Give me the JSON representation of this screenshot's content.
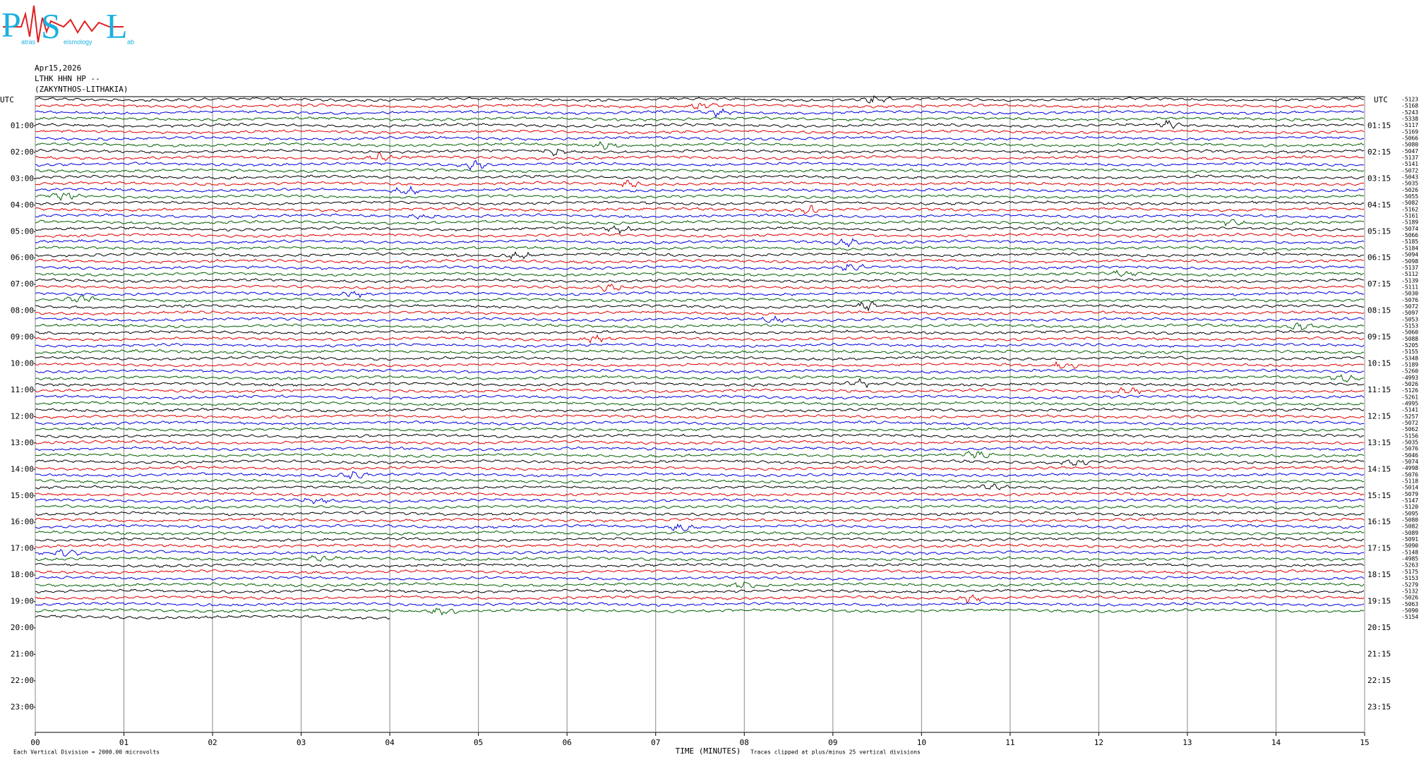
{
  "logo": {
    "letters": [
      "P",
      "S",
      "L"
    ],
    "words": [
      "atras",
      "eismology",
      "ab"
    ]
  },
  "chart_data": {
    "type": "helicorder",
    "title_lines": [
      "Apr15,2026",
      "LTHK HHN HP --",
      "(ZAKYNTHOS-LITHAKIA)"
    ],
    "left_axis_title": "UTC",
    "right_axis_title": "UTC",
    "left_hours": [
      "01:00",
      "02:00",
      "03:00",
      "04:00",
      "05:00",
      "06:00",
      "07:00",
      "08:00",
      "09:00",
      "10:00",
      "11:00",
      "12:00",
      "13:00",
      "14:00",
      "15:00",
      "16:00",
      "17:00",
      "18:00",
      "19:00",
      "20:00",
      "21:00",
      "22:00",
      "23:00"
    ],
    "right_hours": [
      "01:15",
      "02:15",
      "03:15",
      "04:15",
      "05:15",
      "06:15",
      "07:15",
      "08:15",
      "09:15",
      "10:15",
      "11:15",
      "12:15",
      "13:15",
      "14:15",
      "15:15",
      "16:15",
      "17:15",
      "18:15",
      "19:15",
      "20:15",
      "21:15",
      "22:15",
      "23:15"
    ],
    "xlabel": "TIME (MINUTES)",
    "xlim": [
      0,
      15
    ],
    "xticks": [
      {
        "value": 0,
        "label": "00"
      },
      {
        "value": 1,
        "label": "01"
      },
      {
        "value": 2,
        "label": "02"
      },
      {
        "value": 3,
        "label": "03"
      },
      {
        "value": 4,
        "label": "04"
      },
      {
        "value": 5,
        "label": "05"
      },
      {
        "value": 6,
        "label": "06"
      },
      {
        "value": 7,
        "label": "07"
      },
      {
        "value": 8,
        "label": "08"
      },
      {
        "value": 9,
        "label": "09"
      },
      {
        "value": 10,
        "label": "10"
      },
      {
        "value": 11,
        "label": "11"
      },
      {
        "value": 12,
        "label": "12"
      },
      {
        "value": 13,
        "label": "13"
      },
      {
        "value": 14,
        "label": "14"
      },
      {
        "value": 15,
        "label": "15"
      }
    ],
    "row_colors": [
      "#000000",
      "#e00000",
      "#0000e0",
      "#006000"
    ],
    "row_offsets": [
      -5123,
      -5168,
      -5243,
      -5338,
      -5117,
      -5169,
      -5066,
      -5080,
      -5047,
      -5137,
      -5141,
      -5072,
      -5043,
      -5035,
      -5026,
      -5055,
      -5082,
      -5162,
      -5161,
      -5189,
      -5074,
      -5066,
      -5185,
      -5184,
      -5094,
      -5098,
      -5137,
      -5112,
      -5139,
      -5111,
      -5030,
      -5076,
      -5072,
      -5097,
      -5053,
      -5153,
      -5060,
      -5088,
      -5205,
      -5155,
      -5348,
      -5189,
      -5260,
      -4993,
      -5026,
      -5126,
      -5261,
      -4995,
      -5141,
      -5257,
      -5072,
      -5062,
      -5156,
      -5035,
      -5076,
      -5046,
      -5074,
      -4998,
      -5076,
      -5118,
      -5014,
      -5079,
      -5147,
      -5120,
      -5095,
      -5080,
      -5082,
      -5089,
      -5091,
      -5090,
      -5148,
      -4985,
      -5263,
      -5175,
      -5153,
      -5279,
      -5132,
      -5026,
      -5063,
      -5090,
      -5154
    ],
    "footer_left": "Each Vertical Division = 2000.00 microvolts",
    "footer_right": "Traces clipped at plus/minus 25 vertical divisions"
  }
}
